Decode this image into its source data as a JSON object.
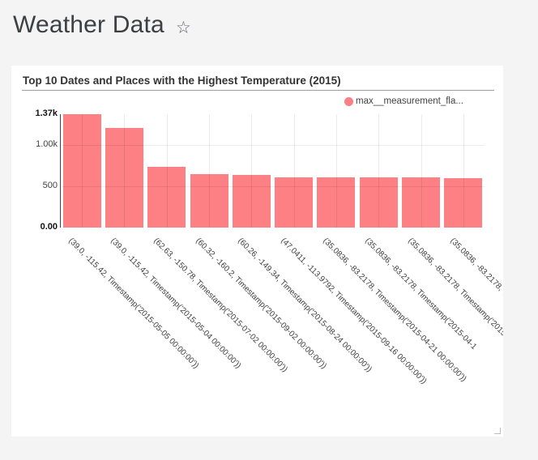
{
  "page": {
    "title": "Weather Data",
    "background_color": "#f4f4f4"
  },
  "icons": {
    "star": "☆"
  },
  "card": {
    "title": "Top 10 Dates and Places with the Highest Temperature (2015)"
  },
  "legend": {
    "label": "max__measurement_fla...",
    "swatch_color": "#fc8084"
  },
  "chart_data": {
    "type": "bar",
    "title": "Top 10 Dates and Places with the Highest Temperature (2015)",
    "categories": [
      "(39.0, -115.42, Timestamp('2015-05-05 00:00:00'))",
      "(39.0, -115.42, Timestamp('2015-05-04 00:00:00'))",
      "(62.63, -150.78, Timestamp('2015-07-02 00:00:00'))",
      "(60.32, -160.2, Timestamp('2015-09-02 00:00:00'))",
      "(60.26, -149.34, Timestamp('2015-08-24 00:00:00'))",
      "(47.0411, -113.9792, Timestamp('2015-09-16 00:00:00'))",
      "(35.0836, -83.2178, Timestamp('2015-04-21 00:00:00'))",
      "(35.0836, -83.2178, Timestamp('2015-04-1",
      "(35.0836, -83.2178, Timestamp('2015-",
      "(35.0836, -83.2178, Timestamp('2"
    ],
    "series": [
      {
        "name": "max__measurement_fla...",
        "values": [
          1370,
          1205,
          732,
          641,
          638,
          610,
          603,
          603,
          602,
          601
        ]
      }
    ],
    "bar_color": "#fc8084",
    "ylim": [
      0,
      1370
    ],
    "y_ticks": [
      {
        "label": "0.00",
        "value": 0,
        "bold": true
      },
      {
        "label": "500",
        "value": 500,
        "bold": false
      },
      {
        "label": "1.00k",
        "value": 1000,
        "bold": false
      },
      {
        "label": "1.37k",
        "value": 1370,
        "bold": true
      }
    ],
    "x_label_rotation_deg": 45,
    "grid": true,
    "legend_position": "top-right"
  }
}
